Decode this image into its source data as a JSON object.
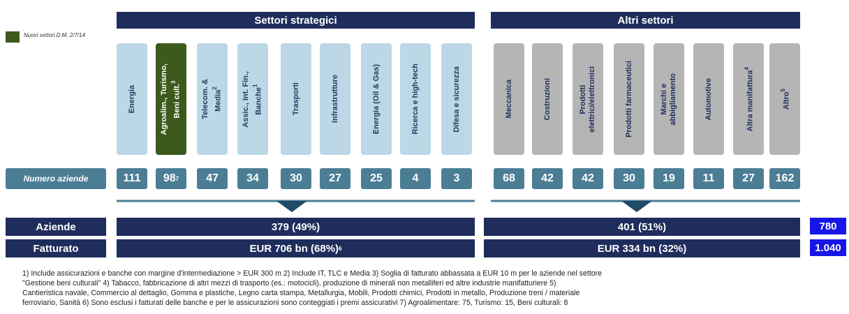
{
  "header": {
    "strategic": "Settori strategici",
    "other": "Altri settori"
  },
  "legend": {
    "label": "Nuovi settori D.M. 2/7/14",
    "color": "#3b5a1c"
  },
  "row_label": "Numero aziende",
  "strategic_sectors": [
    {
      "lines": [
        "Energia"
      ],
      "count": "111"
    },
    {
      "lines": [
        "Agroalim., Turismo,",
        "Beni cult."
      ],
      "note": "3",
      "count": "98",
      "count_note": "7",
      "new": true
    },
    {
      "lines": [
        "Telecom. &",
        "Media"
      ],
      "note": "2",
      "count": "47"
    },
    {
      "lines": [
        "Assic., Int. Fin.,",
        "Banche"
      ],
      "note": "1",
      "count": "34"
    },
    {
      "lines": [
        "Trasporti"
      ],
      "count": "30"
    },
    {
      "lines": [
        "Infrastrutture"
      ],
      "count": "27"
    },
    {
      "lines": [
        "Energia (Oil & Gas)"
      ],
      "count": "25"
    },
    {
      "lines": [
        "Ricerca e high-tech"
      ],
      "count": "4"
    },
    {
      "lines": [
        "Difesa e sicurezza"
      ],
      "count": "3"
    }
  ],
  "other_sectors": [
    {
      "lines": [
        "Meccanica"
      ],
      "count": "68"
    },
    {
      "lines": [
        "Costruzioni"
      ],
      "count": "42"
    },
    {
      "lines": [
        "Prodotti",
        "elettrici/elettronici"
      ],
      "count": "42"
    },
    {
      "lines": [
        "Prodotti farmaceutici"
      ],
      "count": "30"
    },
    {
      "lines": [
        "Marchi e",
        "abbigliamento"
      ],
      "count": "19"
    },
    {
      "lines": [
        "Automotive"
      ],
      "count": "11"
    },
    {
      "lines": [
        "Altra manifattura"
      ],
      "note": "4",
      "count": "27"
    },
    {
      "lines": [
        "Altro"
      ],
      "note": "5",
      "count": "162"
    }
  ],
  "summary": [
    {
      "label": "Aziende",
      "strategic": "379 (49%)",
      "other": "401 (51%)",
      "total": "780"
    },
    {
      "label": "Fatturato",
      "strategic": "EUR 706 bn (68%)",
      "strategic_note": "6",
      "other": "EUR 334 bn (32%)",
      "total": "1.040"
    }
  ],
  "footnotes": [
    "1) Include assicurazioni e banche con margine d'intermediazione > EUR 300 m  2) Include IT, TLC e Media  3) Soglia di fatturato abbassata a EUR 10 m per le aziende nel settore",
    "\"Gestione beni culturali\"  4) Tabacco, fabbricazione di altri mezzi di trasporto (es.: motocicli), produzione di minerali non metalliferi ed altre industrie manifatturiere  5)",
    "Cantieristica navale, Commercio al dettaglio, Gomma e plastiche, Legno carta stampa, Metallurgia, Mobili, Prodotti chimici, Prodotti in metallo, Produzione treni / materiale",
    "ferroviario, Sanità  6) Sono esclusi i fatturati delle banche e per le assicurazioni sono conteggiati i premi assicurativi  7) Agroalimentare: 75, Turismo: 15, Beni culturali: 8"
  ]
}
